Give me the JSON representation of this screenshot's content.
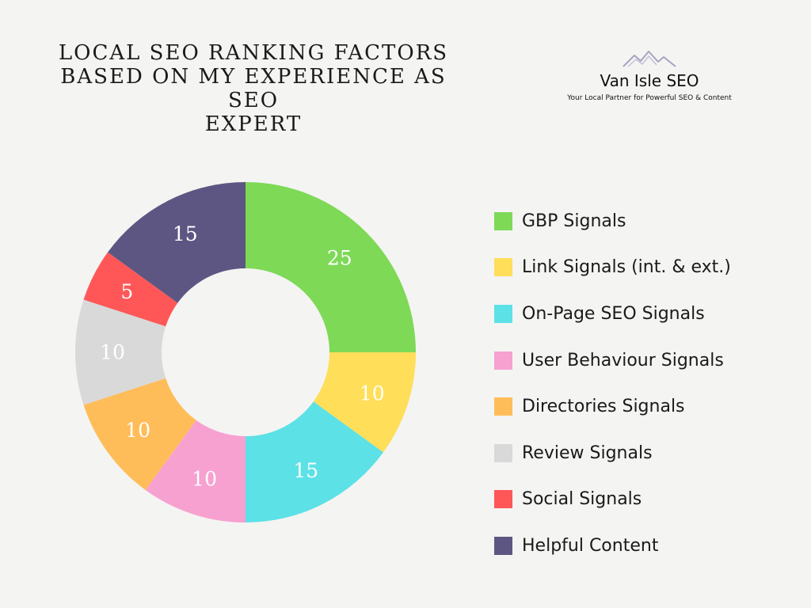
{
  "title": {
    "line1": "LOCAL SEO RANKING FACTORS",
    "line2": "BASED ON MY EXPERIENCE AS SEO",
    "line3": "EXPERT"
  },
  "brand": {
    "name": "Van Isle SEO",
    "tagline": "Your Local Partner for Powerful SEO & Content",
    "logo_icon": "mountain-logo-icon"
  },
  "chart_data": {
    "type": "pie",
    "donut": true,
    "categories": [
      "GBP Signals",
      "Link Signals (int. & ext.)",
      "On-Page SEO Signals",
      "User Behaviour Signals",
      "Directories Signals",
      "Review Signals",
      "Social Signals",
      "Helpful Content"
    ],
    "values": [
      25,
      10,
      15,
      10,
      10,
      10,
      5,
      15
    ],
    "colors": [
      "#7ed957",
      "#ffde59",
      "#5ce1e6",
      "#f7a1d1",
      "#ffbd59",
      "#d9d9d9",
      "#ff5757",
      "#5e5682"
    ],
    "label_colors": [
      "#ffffff",
      "#ffffff",
      "#ffffff",
      "#ffffff",
      "#ffffff",
      "#ffffff",
      "#ffffff",
      "#ffffff"
    ],
    "legend_position": "right",
    "start": "top, clockwise"
  }
}
